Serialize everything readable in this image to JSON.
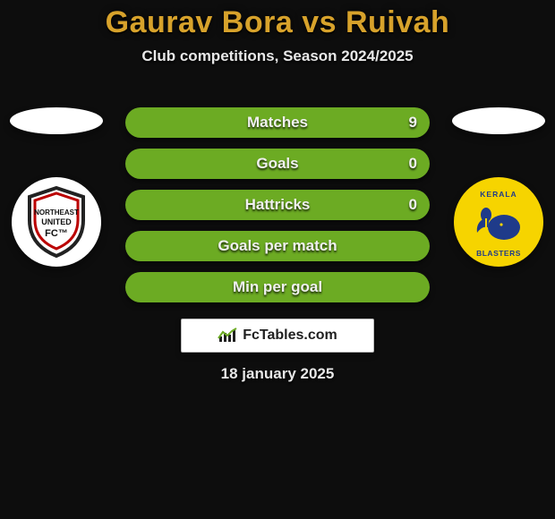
{
  "title": {
    "text": "Gaurav Bora vs Ruivah",
    "color": "#d7a22b",
    "fontsize": 34
  },
  "subtitle": {
    "text": "Club competitions, Season 2024/2025",
    "fontsize": 17
  },
  "rows": [
    {
      "label": "Matches",
      "right_value": "9",
      "bg": "#6cab23",
      "label_fontsize": 17
    },
    {
      "label": "Goals",
      "right_value": "0",
      "bg": "#6cab23",
      "label_fontsize": 17
    },
    {
      "label": "Hattricks",
      "right_value": "0",
      "bg": "#6cab23",
      "label_fontsize": 17
    },
    {
      "label": "Goals per match",
      "right_value": "",
      "bg": "#6cab23",
      "label_fontsize": 17
    },
    {
      "label": "Min per goal",
      "right_value": "",
      "bg": "#6cab23",
      "label_fontsize": 17
    }
  ],
  "left_club": {
    "name": "NorthEast United",
    "badge_bg": "#ffffff",
    "ring": "#111111"
  },
  "right_club": {
    "name": "Kerala Blasters",
    "badge_bg": "#f6d400",
    "accent": "#1f3b8a"
  },
  "brand": {
    "text": "FcTables.com",
    "icon": "chart-icon"
  },
  "date": {
    "text": "18 january 2025",
    "fontsize": 17
  },
  "colors": {
    "page_bg": "#0d0d0d"
  }
}
